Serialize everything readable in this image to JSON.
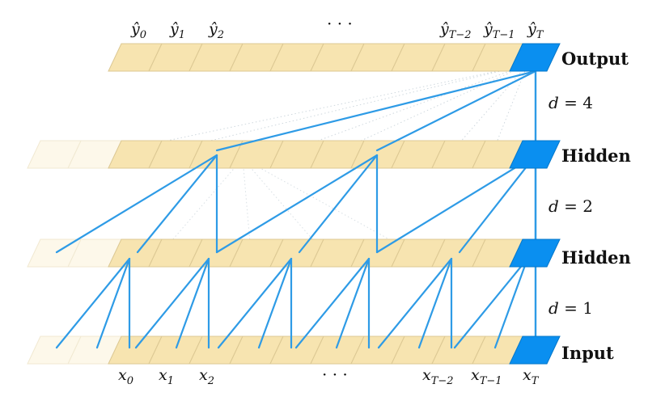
{
  "layers": [
    {
      "label": "Output"
    },
    {
      "label": "Hidden"
    },
    {
      "label": "Hidden"
    },
    {
      "label": "Input"
    }
  ],
  "dilations": [
    {
      "var": "d",
      "eq": " = 4"
    },
    {
      "var": "d",
      "eq": " = 2"
    },
    {
      "var": "d",
      "eq": " = 1"
    }
  ],
  "output_labels": [
    {
      "base": "ŷ",
      "sub": "0"
    },
    {
      "base": "ŷ",
      "sub": "1"
    },
    {
      "base": "ŷ",
      "sub": "2"
    },
    {
      "base": "ŷ",
      "sub": "T−2"
    },
    {
      "base": "ŷ",
      "sub": "T−1"
    },
    {
      "base": "ŷ",
      "sub": "T"
    }
  ],
  "input_labels": [
    {
      "base": "x",
      "sub": "0"
    },
    {
      "base": "x",
      "sub": "1"
    },
    {
      "base": "x",
      "sub": "2"
    },
    {
      "base": "x",
      "sub": "T−2"
    },
    {
      "base": "x",
      "sub": "T−1"
    },
    {
      "base": "x",
      "sub": "T"
    }
  ],
  "ellipsis": "· · ·",
  "colors": {
    "cell_fill": "#f7e4b0",
    "cell_stroke": "#dcc893",
    "highlight": "#0a8ff0",
    "connection": "#2e9be6"
  }
}
